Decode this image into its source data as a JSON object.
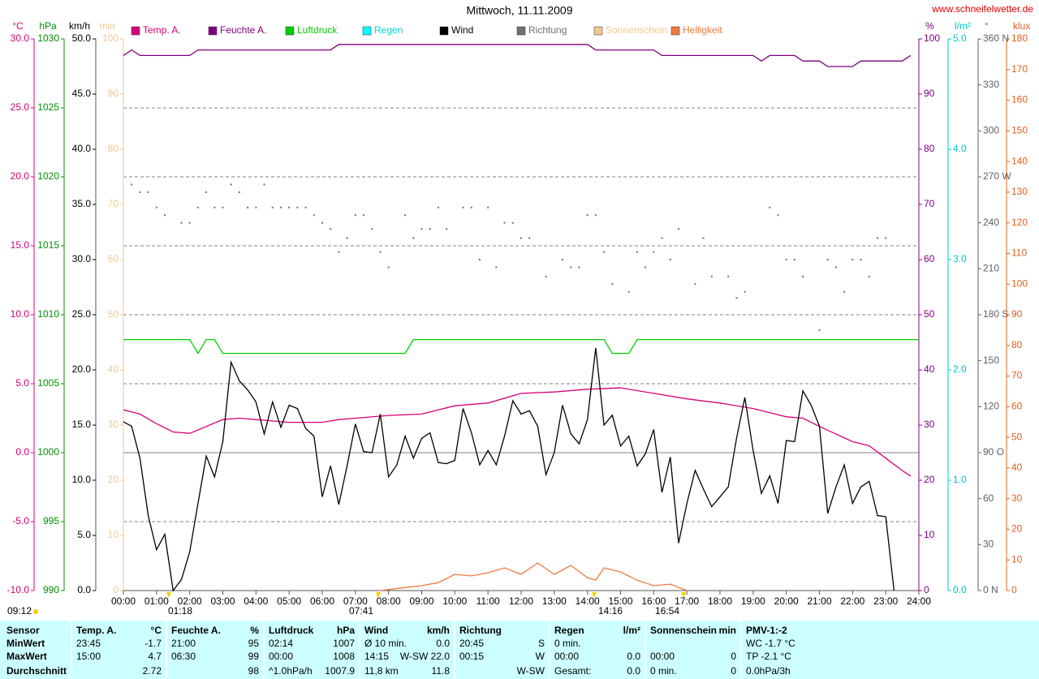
{
  "chart_data": {
    "type": "line",
    "title": "Mittwoch, 11.11.2009",
    "source": "www.schneifelwetter.de",
    "xlim": [
      0,
      24
    ],
    "xticks": [
      {
        "value": 0,
        "label": "00:00"
      },
      {
        "value": 1,
        "label": "01:00"
      },
      {
        "value": 2,
        "label": "02:00"
      },
      {
        "value": 3,
        "label": "03:00"
      },
      {
        "value": 4,
        "label": "04:00"
      },
      {
        "value": 5,
        "label": "05:00"
      },
      {
        "value": 6,
        "label": "06:00"
      },
      {
        "value": 7,
        "label": "07:00"
      },
      {
        "value": 8,
        "label": "08:00"
      },
      {
        "value": 9,
        "label": "09:00"
      },
      {
        "value": 10,
        "label": "10:00"
      },
      {
        "value": 11,
        "label": "11:00"
      },
      {
        "value": 12,
        "label": "12:00"
      },
      {
        "value": 13,
        "label": "13:00"
      },
      {
        "value": 14,
        "label": "14:00"
      },
      {
        "value": 15,
        "label": "15:00"
      },
      {
        "value": 16,
        "label": "16:00"
      },
      {
        "value": 17,
        "label": "17:00"
      },
      {
        "value": 18,
        "label": "18:00"
      },
      {
        "value": 19,
        "label": "19:00"
      },
      {
        "value": 20,
        "label": "20:00"
      },
      {
        "value": 21,
        "label": "21:00"
      },
      {
        "value": 22,
        "label": "22:00"
      },
      {
        "value": 23,
        "label": "23:00"
      },
      {
        "value": 24,
        "label": "24:00"
      }
    ],
    "grid": true,
    "axes": [
      {
        "unit": "°C",
        "side": "left",
        "color": "#d8007a",
        "lim": [
          -10,
          30
        ],
        "ticks": [
          {
            "value": -10,
            "label": "-10.0"
          },
          {
            "value": -5,
            "label": "-5.0"
          },
          {
            "value": 0,
            "label": "0.0"
          },
          {
            "value": 5,
            "label": "5.0"
          },
          {
            "value": 10,
            "label": "10.0"
          },
          {
            "value": 15,
            "label": "15.0"
          },
          {
            "value": 20,
            "label": "20.0"
          },
          {
            "value": 25,
            "label": "25.0"
          },
          {
            "value": 30,
            "label": "30.0"
          }
        ]
      },
      {
        "unit": "hPa",
        "side": "left",
        "color": "#009000",
        "lim": [
          990,
          1030
        ],
        "ticks": [
          990,
          995,
          1000,
          1005,
          1010,
          1015,
          1020,
          1025,
          1030
        ]
      },
      {
        "unit": "km/h",
        "side": "left",
        "color": "#000000",
        "lim": [
          0,
          50
        ],
        "ticks": [
          {
            "value": 0,
            "label": "0.0"
          },
          {
            "value": 5,
            "label": "5.0"
          },
          {
            "value": 10,
            "label": "10.0"
          },
          {
            "value": 15,
            "label": "15.0"
          },
          {
            "value": 20,
            "label": "20.0"
          },
          {
            "value": 25,
            "label": "25.0"
          },
          {
            "value": 30,
            "label": "30.0"
          },
          {
            "value": 35,
            "label": "35.0"
          },
          {
            "value": 40,
            "label": "40.0"
          },
          {
            "value": 45,
            "label": "45.0"
          },
          {
            "value": 50,
            "label": "50.0"
          }
        ]
      },
      {
        "unit": "min",
        "side": "left",
        "color": "#f0c890",
        "lim": [
          0,
          100
        ],
        "ticks": [
          0,
          10,
          20,
          30,
          40,
          50,
          60,
          70,
          80,
          90,
          100
        ]
      },
      {
        "unit": "%",
        "side": "right",
        "color": "#800080",
        "lim": [
          0,
          100
        ],
        "ticks": [
          0,
          10,
          20,
          30,
          40,
          50,
          60,
          70,
          80,
          90,
          100
        ]
      },
      {
        "unit": "l/m²",
        "side": "right",
        "color": "#00c8c8",
        "lim": [
          0,
          5
        ],
        "ticks": [
          {
            "value": 0,
            "label": "0.0"
          },
          {
            "value": 1,
            "label": "1.0"
          },
          {
            "value": 2,
            "label": "2.0"
          },
          {
            "value": 3,
            "label": "3.0"
          },
          {
            "value": 4,
            "label": "4.0"
          },
          {
            "value": 5,
            "label": "5.0"
          }
        ]
      },
      {
        "unit": "°",
        "side": "right",
        "color": "#606060",
        "lim": [
          0,
          360
        ],
        "ticks": [
          {
            "value": 0,
            "label": "0 N"
          },
          30,
          60,
          {
            "value": 90,
            "label": "90 O"
          },
          120,
          150,
          {
            "value": 180,
            "label": "180 S"
          },
          210,
          240,
          {
            "value": 270,
            "label": "270 W"
          },
          300,
          330,
          {
            "value": 360,
            "label": "360 N"
          }
        ]
      },
      {
        "unit": "klux",
        "side": "right",
        "color": "#e06020",
        "lim": [
          0,
          180
        ],
        "ticks": [
          0,
          10,
          20,
          30,
          40,
          50,
          60,
          70,
          80,
          90,
          100,
          110,
          120,
          130,
          140,
          150,
          160,
          170,
          180
        ]
      }
    ],
    "series": [
      {
        "name": "Temp. A.",
        "color": "#d8007a",
        "axis": "°C",
        "x": [
          0,
          0.5,
          1,
          1.5,
          2,
          2.5,
          3,
          3.5,
          4,
          5,
          6,
          6.5,
          7,
          8,
          9,
          10,
          11,
          12,
          13,
          14,
          15,
          16,
          17,
          18,
          19,
          20,
          20.5,
          21,
          22,
          22.5,
          23,
          23.5,
          23.75
        ],
        "values": [
          3.1,
          2.8,
          2.1,
          1.5,
          1.4,
          1.9,
          2.4,
          2.5,
          2.4,
          2.2,
          2.2,
          2.4,
          2.5,
          2.7,
          2.8,
          3.4,
          3.6,
          4.3,
          4.4,
          4.6,
          4.7,
          4.3,
          3.9,
          3.6,
          3.2,
          2.6,
          2.5,
          1.9,
          0.8,
          0.5,
          -0.4,
          -1.3,
          -1.7
        ]
      },
      {
        "name": "Feuchte A.",
        "color": "#800080",
        "axis": "%",
        "x": [
          0,
          0.25,
          0.5,
          2,
          2.25,
          6.25,
          6.5,
          14,
          14.25,
          16,
          16.25,
          19,
          19.25,
          19.5,
          20.25,
          20.5,
          21,
          21.25,
          22,
          22.25,
          23.5,
          23.75
        ],
        "values": [
          97,
          98,
          97,
          97,
          98,
          98,
          99,
          99,
          98,
          98,
          97,
          97,
          96,
          97,
          97,
          96,
          96,
          95,
          95,
          96,
          96,
          97
        ]
      },
      {
        "name": "Luftdruck",
        "color": "#00d000",
        "axis": "hPa",
        "x": [
          0,
          2,
          2.25,
          2.5,
          2.75,
          3,
          8.5,
          8.75,
          14.5,
          14.75,
          15.25,
          15.5,
          24
        ],
        "values": [
          1008.2,
          1008.2,
          1007.2,
          1008.2,
          1008.2,
          1007.2,
          1007.2,
          1008.2,
          1008.2,
          1007.2,
          1007.2,
          1008.2,
          1008.2
        ]
      },
      {
        "name": "Regen",
        "color": "#00ffff",
        "axis": "l/m²",
        "x": [],
        "values": []
      },
      {
        "name": "Wind",
        "color": "#000000",
        "axis": "km/h",
        "x": [
          0,
          0.25,
          0.5,
          0.75,
          1,
          1.25,
          1.5,
          1.75,
          2,
          2.25,
          2.5,
          2.75,
          3,
          3.25,
          3.5,
          3.75,
          4,
          4.25,
          4.5,
          4.75,
          5,
          5.25,
          5.5,
          5.75,
          6,
          6.25,
          6.5,
          6.75,
          7,
          7.25,
          7.5,
          7.75,
          8,
          8.25,
          8.5,
          8.75,
          9,
          9.25,
          9.5,
          9.75,
          10,
          10.25,
          10.5,
          10.75,
          11,
          11.25,
          11.5,
          11.75,
          12,
          12.25,
          12.5,
          12.75,
          13,
          13.25,
          13.5,
          13.75,
          14,
          14.25,
          14.5,
          14.75,
          15,
          15.25,
          15.5,
          15.75,
          16,
          16.25,
          16.5,
          16.75,
          17,
          17.25,
          17.5,
          17.75,
          18,
          18.25,
          18.5,
          18.75,
          19,
          19.25,
          19.5,
          19.75,
          20,
          20.25,
          20.5,
          20.75,
          21,
          21.25,
          21.5,
          21.75,
          22,
          22.25,
          22.5,
          22.75,
          23,
          23.25
        ],
        "values": [
          15.3,
          14.9,
          12.0,
          6.8,
          3.7,
          5.1,
          0.0,
          1.0,
          3.5,
          7.9,
          12.2,
          10.3,
          13.5,
          20.7,
          19.0,
          18.2,
          17.1,
          14.2,
          17.1,
          14.8,
          16.8,
          16.5,
          14.7,
          14.0,
          8.5,
          11.3,
          7.8,
          11.3,
          15.1,
          12.6,
          12.5,
          16.0,
          10.3,
          11.4,
          14.0,
          12.0,
          13.8,
          14.3,
          11.6,
          11.5,
          11.8,
          16.5,
          14.3,
          11.4,
          12.7,
          11.4,
          14.0,
          17.2,
          16.0,
          16.3,
          14.9,
          10.5,
          12.5,
          16.8,
          14.2,
          13.3,
          15.5,
          22.0,
          15.0,
          15.9,
          13.1,
          14.0,
          11.3,
          12.4,
          14.6,
          8.9,
          12.1,
          4.3,
          7.9,
          10.9,
          9.2,
          7.6,
          8.5,
          9.4,
          13.8,
          17.5,
          12.7,
          8.8,
          10.4,
          7.9,
          13.6,
          13.5,
          18.1,
          16.8,
          14.9,
          7.0,
          9.4,
          11.4,
          7.9,
          9.4,
          9.9,
          6.8,
          6.7,
          0.0
        ]
      },
      {
        "name": "Richtung",
        "color": "#707070",
        "axis": "°",
        "style": "dots",
        "x": [
          0.25,
          0.5,
          0.75,
          1,
          1.25,
          1.75,
          2,
          2.25,
          2.5,
          2.75,
          3,
          3.25,
          3.5,
          3.75,
          4,
          4.25,
          4.5,
          4.75,
          5,
          5.25,
          5.5,
          5.75,
          6,
          6.25,
          6.5,
          6.75,
          7,
          7.25,
          7.5,
          7.75,
          8,
          8.5,
          8.75,
          9,
          9.25,
          9.5,
          9.75,
          10.25,
          10.5,
          10.75,
          11,
          11.25,
          11.5,
          11.75,
          12,
          12.25,
          12.75,
          13.25,
          13.5,
          13.75,
          14,
          14.25,
          14.5,
          14.75,
          15.25,
          15.5,
          15.75,
          16,
          16.25,
          16.5,
          16.75,
          17.25,
          17.5,
          17.75,
          18.25,
          18.5,
          18.75,
          19.5,
          19.75,
          20,
          20.25,
          20.5,
          21,
          21.25,
          21.5,
          21.75,
          22,
          22.25,
          22.5,
          22.75,
          23
        ],
        "values": [
          265,
          260,
          260,
          250,
          245,
          240,
          240,
          250,
          260,
          250,
          250,
          265,
          260,
          250,
          250,
          265,
          250,
          250,
          250,
          250,
          250,
          245,
          240,
          236,
          221,
          230,
          245,
          245,
          236,
          221,
          211,
          245,
          230,
          236,
          236,
          250,
          236,
          250,
          250,
          216,
          250,
          211,
          240,
          240,
          230,
          230,
          205,
          216,
          211,
          211,
          245,
          245,
          221,
          200,
          195,
          221,
          211,
          221,
          230,
          216,
          236,
          200,
          230,
          205,
          205,
          191,
          195,
          250,
          245,
          216,
          216,
          205,
          170,
          216,
          211,
          195,
          216,
          216,
          205,
          230,
          230
        ]
      },
      {
        "name": "Sonnenschein",
        "color": "#f0c890",
        "axis": "min",
        "x": [],
        "values": []
      },
      {
        "name": "Helligkeit",
        "color": "#f07840",
        "axis": "klux",
        "x": [
          7.75,
          8.5,
          9,
          9.5,
          10,
          10.5,
          11,
          11.5,
          12,
          12.5,
          13,
          13.5,
          14,
          14.25,
          14.5,
          15,
          15.5,
          16,
          16.5,
          17
        ],
        "values": [
          0,
          1,
          1.6,
          2.6,
          5.3,
          4.8,
          5.8,
          7.4,
          5.3,
          9,
          5.3,
          8.2,
          4.2,
          3.4,
          7.4,
          6.1,
          3.4,
          1.6,
          2.1,
          0
        ]
      }
    ],
    "annotations": [
      "09:12",
      "01:18",
      "07:41",
      "14:16",
      "16:54"
    ]
  },
  "table": {
    "header": [
      "Sensor",
      [
        "Temp. A.",
        "°C"
      ],
      [
        "Feuchte A.",
        "%"
      ],
      [
        "Luftdruck",
        "hPa"
      ],
      [
        "Wind",
        "km/h"
      ],
      [
        "Richtung",
        null
      ],
      [
        "Regen",
        "l/m²"
      ],
      [
        "Sonnenschein",
        "min"
      ],
      [
        "PMV-1:-2",
        null
      ]
    ],
    "rows": [
      [
        "MinWert",
        [
          "23:45",
          "-1.7"
        ],
        [
          "21:00",
          "95"
        ],
        [
          "02:14",
          "1007"
        ],
        [
          "Ø 10 min.",
          "0.0"
        ],
        [
          "20:45",
          "S"
        ],
        [
          "0 min.",
          null
        ],
        [
          null,
          null
        ],
        [
          "WC -1.7 °C",
          null
        ]
      ],
      [
        "MaxWert",
        [
          "15:00",
          "4.7"
        ],
        [
          "06:30",
          "99"
        ],
        [
          "00:00",
          "1008"
        ],
        [
          "14:15",
          "W-SW 22.0"
        ],
        [
          "00:15",
          "W"
        ],
        [
          "00:00",
          "0.0"
        ],
        [
          "00:00",
          "0"
        ],
        [
          "TP -2.1 °C",
          null
        ]
      ],
      [
        "Durchschnitt",
        [
          null,
          "2.72"
        ],
        [
          null,
          "98"
        ],
        [
          "^1.0hPa/h",
          "1007.9"
        ],
        [
          "11,8 km",
          "11.8"
        ],
        [
          null,
          "W-SW"
        ],
        [
          "Gesamt:",
          "0.0"
        ],
        [
          "0 min.",
          "0"
        ],
        [
          "0.0hPa/3h",
          null
        ]
      ]
    ]
  }
}
